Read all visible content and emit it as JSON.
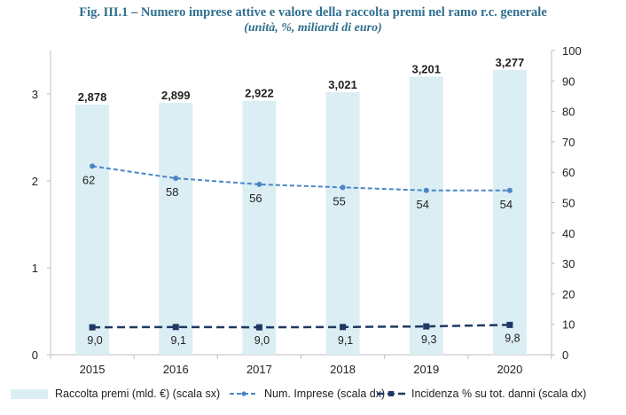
{
  "title": "Fig. III.1 – Numero imprese attive e valore della raccolta premi nel ramo r.c. generale",
  "subtitle": "(unità, %, miliardi di euro)",
  "colors": {
    "bars": "#dbeef4",
    "imprese_line": "#4a86c5",
    "incidenza_line": "#1f3864",
    "title": "#2e6f8e"
  },
  "legend": {
    "bars": "Raccolta premi (mld. €) (scala sx)",
    "imprese": "Num. Imprese (scala dx)",
    "incidenza": "Incidenza % su tot. danni (scala dx)"
  },
  "chart_data": {
    "type": "bar",
    "categories": [
      "2015",
      "2016",
      "2017",
      "2018",
      "2019",
      "2020"
    ],
    "left_axis": {
      "ticks": [
        "0",
        "1",
        "2",
        "3"
      ],
      "ylim": [
        0,
        3.5
      ]
    },
    "right_axis": {
      "ticks": [
        "0",
        "10",
        "20",
        "30",
        "40",
        "50",
        "60",
        "70",
        "80",
        "90",
        "100"
      ],
      "ylim": [
        0,
        100
      ]
    },
    "series": [
      {
        "name": "Raccolta premi (mld. €) (scala sx)",
        "type": "bar",
        "axis": "left",
        "values": [
          2.878,
          2.899,
          2.922,
          3.021,
          3.201,
          3.277
        ],
        "labels": [
          "2,878",
          "2,899",
          "2,922",
          "3,021",
          "3,201",
          "3,277"
        ]
      },
      {
        "name": "Num. Imprese (scala dx)",
        "type": "line",
        "axis": "right",
        "style": "dashed",
        "values": [
          62,
          58,
          56,
          55,
          54,
          54
        ],
        "labels": [
          "62",
          "58",
          "56",
          "55",
          "54",
          "54"
        ]
      },
      {
        "name": "Incidenza % su tot. danni (scala dx)",
        "type": "line",
        "axis": "right",
        "style": "dashed",
        "values": [
          9.0,
          9.1,
          9.0,
          9.1,
          9.3,
          9.8
        ],
        "labels": [
          "9,0",
          "9,1",
          "9,0",
          "9,1",
          "9,3",
          "9,8"
        ]
      }
    ]
  }
}
